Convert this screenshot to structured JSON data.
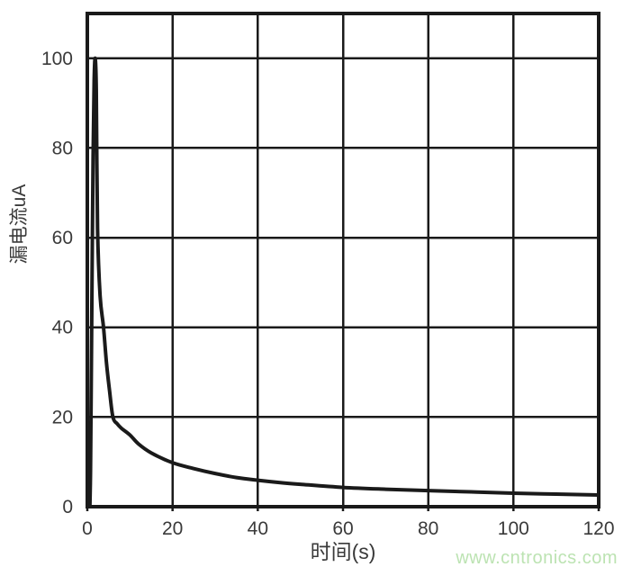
{
  "page": {
    "background": "#ffffff"
  },
  "watermark": {
    "text": "www.cntronics.com",
    "color": "#bce3b2"
  },
  "chart_data": {
    "type": "line",
    "title": "",
    "xlabel": "时间(s)",
    "ylabel": "漏电流uA",
    "xlim": [
      0,
      120
    ],
    "ylim": [
      0,
      110
    ],
    "xticks": [
      0,
      20,
      40,
      60,
      80,
      100,
      120
    ],
    "yticks": [
      0,
      20,
      40,
      60,
      80,
      100
    ],
    "grid": true,
    "legend": false,
    "frame_color": "#1a1a1a",
    "grid_color": "#1a1a1a",
    "tick_color": "#3a3a3a",
    "line_color": "#1a1a1a",
    "series": [
      {
        "name": "漏电流",
        "points": [
          [
            0.6,
            0
          ],
          [
            0.75,
            8
          ],
          [
            0.9,
            25
          ],
          [
            1.1,
            50
          ],
          [
            1.35,
            78
          ],
          [
            1.6,
            95
          ],
          [
            1.85,
            100
          ],
          [
            2.1,
            93
          ],
          [
            2.4,
            62
          ],
          [
            3.0,
            47
          ],
          [
            3.8,
            40
          ],
          [
            4.5,
            32
          ],
          [
            5.2,
            26
          ],
          [
            6,
            20
          ],
          [
            7,
            18.5
          ],
          [
            8,
            17.5
          ],
          [
            10,
            16
          ],
          [
            12,
            14
          ],
          [
            15,
            12
          ],
          [
            20,
            9.8
          ],
          [
            25,
            8.5
          ],
          [
            30,
            7.4
          ],
          [
            35,
            6.5
          ],
          [
            40,
            5.9
          ],
          [
            45,
            5.4
          ],
          [
            50,
            5.0
          ],
          [
            60,
            4.3
          ],
          [
            70,
            3.9
          ],
          [
            80,
            3.6
          ],
          [
            90,
            3.3
          ],
          [
            100,
            3.0
          ],
          [
            110,
            2.8
          ],
          [
            120,
            2.6
          ]
        ]
      }
    ]
  }
}
